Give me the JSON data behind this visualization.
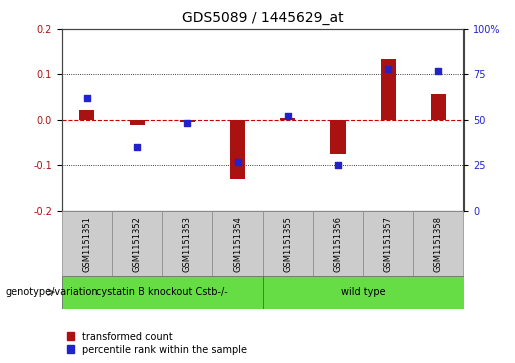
{
  "title": "GDS5089 / 1445629_at",
  "samples": [
    "GSM1151351",
    "GSM1151352",
    "GSM1151353",
    "GSM1151354",
    "GSM1151355",
    "GSM1151356",
    "GSM1151357",
    "GSM1151358"
  ],
  "transformed_count": [
    0.022,
    -0.012,
    -0.004,
    -0.13,
    0.005,
    -0.075,
    0.135,
    0.057
  ],
  "percentile_rank": [
    62,
    35,
    48,
    27,
    52,
    25,
    78,
    77
  ],
  "group1_range": [
    0,
    3
  ],
  "group2_range": [
    4,
    7
  ],
  "group1_label": "cystatin B knockout Cstb-/-",
  "group2_label": "wild type",
  "group_color": "#66dd44",
  "sample_cell_color": "#cccccc",
  "ylim_left": [
    -0.2,
    0.2
  ],
  "ylim_right": [
    0,
    100
  ],
  "left_yticks": [
    -0.2,
    -0.1,
    0.0,
    0.1,
    0.2
  ],
  "right_yticks": [
    0,
    25,
    50,
    75,
    100
  ],
  "right_yticklabels": [
    "0",
    "25",
    "50",
    "75",
    "100%"
  ],
  "bar_color": "#aa1111",
  "dot_color": "#2222cc",
  "zero_line_color": "#cc0000",
  "grid_color": "#000000",
  "bg_color": "#ffffff",
  "group_annotation_label": "genotype/variation",
  "legend_transformed": "transformed count",
  "legend_percentile": "percentile rank within the sample",
  "title_fontsize": 10,
  "tick_fontsize": 7,
  "sample_fontsize": 6,
  "group_fontsize": 7,
  "legend_fontsize": 7,
  "bar_width": 0.3
}
